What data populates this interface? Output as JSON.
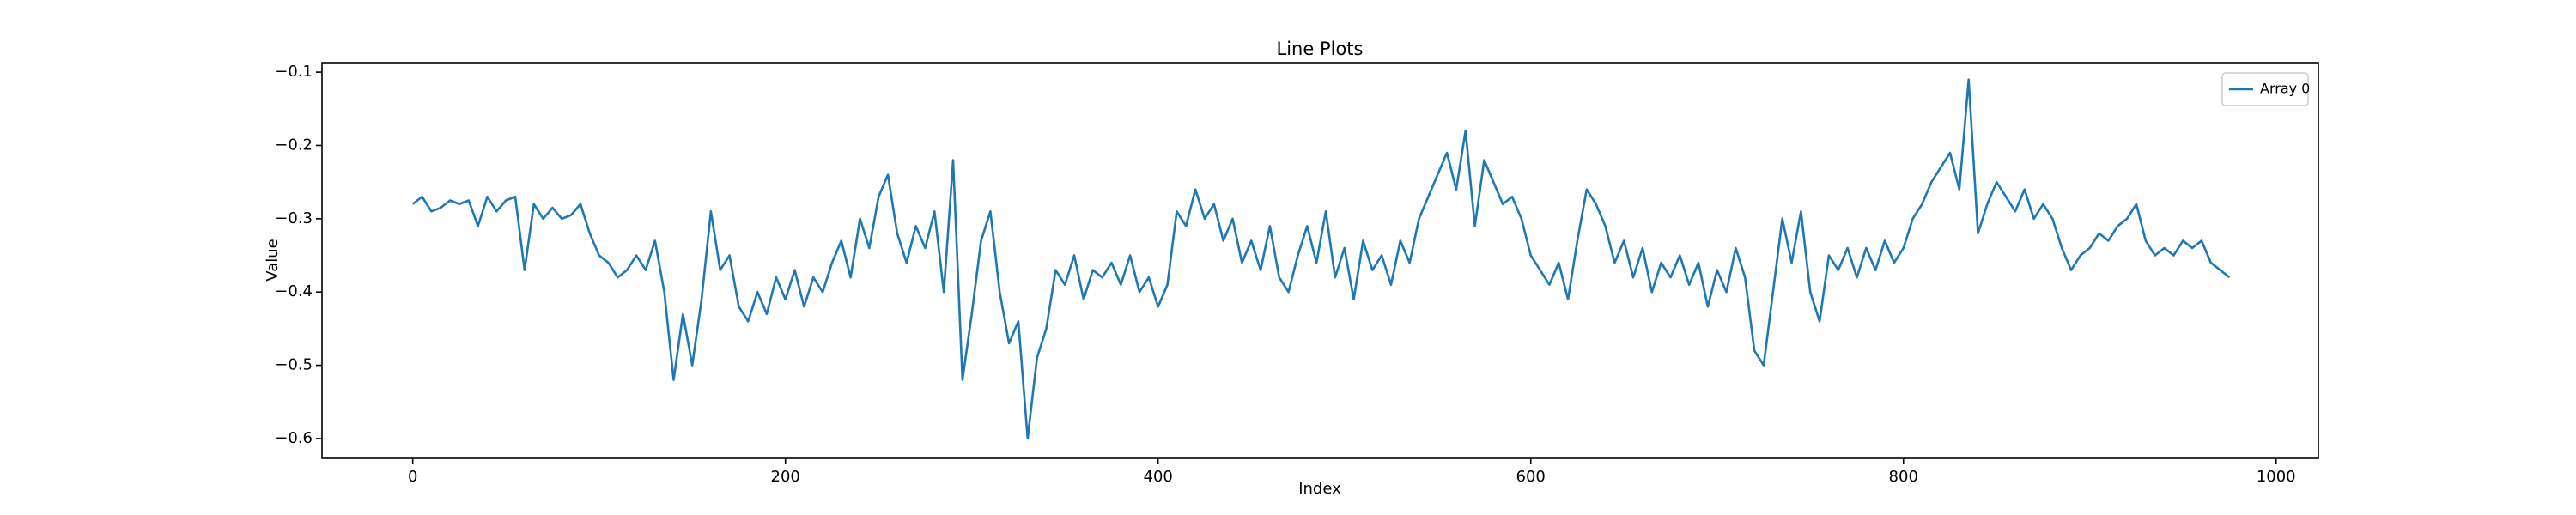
{
  "chart_data": {
    "type": "line",
    "title": "Line Plots",
    "xlabel": "Index",
    "ylabel": "Value",
    "x": [
      0,
      5,
      10,
      15,
      20,
      25,
      30,
      35,
      40,
      45,
      50,
      55,
      60,
      65,
      70,
      75,
      80,
      85,
      90,
      95,
      100,
      105,
      110,
      115,
      120,
      125,
      130,
      135,
      140,
      145,
      150,
      155,
      160,
      165,
      170,
      175,
      180,
      185,
      190,
      195,
      200,
      205,
      210,
      215,
      220,
      225,
      230,
      235,
      240,
      245,
      250,
      255,
      260,
      265,
      270,
      275,
      280,
      285,
      290,
      295,
      300,
      305,
      310,
      315,
      320,
      325,
      330,
      335,
      340,
      345,
      350,
      355,
      360,
      365,
      370,
      375,
      380,
      385,
      390,
      395,
      400,
      405,
      410,
      415,
      420,
      425,
      430,
      435,
      440,
      445,
      450,
      455,
      460,
      465,
      470,
      475,
      480,
      485,
      490,
      495,
      500,
      505,
      510,
      515,
      520,
      525,
      530,
      535,
      540,
      545,
      550,
      555,
      560,
      565,
      570,
      575,
      580,
      585,
      590,
      595,
      600,
      605,
      610,
      615,
      620,
      625,
      630,
      635,
      640,
      645,
      650,
      655,
      660,
      665,
      670,
      675,
      680,
      685,
      690,
      695,
      700,
      705,
      710,
      715,
      720,
      725,
      730,
      735,
      740,
      745,
      750,
      755,
      760,
      765,
      770,
      775,
      780,
      785,
      790,
      795,
      800,
      805,
      810,
      815,
      820,
      825,
      830,
      835,
      840,
      845,
      850,
      855,
      860,
      865,
      870,
      875,
      880,
      885,
      890,
      895,
      900,
      905,
      910,
      915,
      920,
      925,
      930,
      935,
      940,
      945,
      950,
      955,
      960,
      965,
      970,
      975
    ],
    "series": [
      {
        "name": "Array 0",
        "color": "#1f77b4",
        "values": [
          -0.28,
          -0.27,
          -0.29,
          -0.285,
          -0.275,
          -0.28,
          -0.275,
          -0.31,
          -0.27,
          -0.29,
          -0.275,
          -0.27,
          -0.37,
          -0.28,
          -0.3,
          -0.285,
          -0.3,
          -0.295,
          -0.28,
          -0.32,
          -0.35,
          -0.36,
          -0.38,
          -0.37,
          -0.35,
          -0.37,
          -0.33,
          -0.4,
          -0.52,
          -0.43,
          -0.5,
          -0.41,
          -0.29,
          -0.37,
          -0.35,
          -0.42,
          -0.44,
          -0.4,
          -0.43,
          -0.38,
          -0.41,
          -0.37,
          -0.42,
          -0.38,
          -0.4,
          -0.36,
          -0.33,
          -0.38,
          -0.3,
          -0.34,
          -0.27,
          -0.24,
          -0.32,
          -0.36,
          -0.31,
          -0.34,
          -0.29,
          -0.4,
          -0.22,
          -0.52,
          -0.43,
          -0.33,
          -0.29,
          -0.4,
          -0.47,
          -0.44,
          -0.6,
          -0.49,
          -0.45,
          -0.37,
          -0.39,
          -0.35,
          -0.41,
          -0.37,
          -0.38,
          -0.36,
          -0.39,
          -0.35,
          -0.4,
          -0.38,
          -0.42,
          -0.39,
          -0.29,
          -0.31,
          -0.26,
          -0.3,
          -0.28,
          -0.33,
          -0.3,
          -0.36,
          -0.33,
          -0.37,
          -0.31,
          -0.38,
          -0.4,
          -0.35,
          -0.31,
          -0.36,
          -0.29,
          -0.38,
          -0.34,
          -0.41,
          -0.33,
          -0.37,
          -0.35,
          -0.39,
          -0.33,
          -0.36,
          -0.3,
          -0.27,
          -0.24,
          -0.21,
          -0.26,
          -0.18,
          -0.31,
          -0.22,
          -0.25,
          -0.28,
          -0.27,
          -0.3,
          -0.35,
          -0.37,
          -0.39,
          -0.36,
          -0.41,
          -0.33,
          -0.26,
          -0.28,
          -0.31,
          -0.36,
          -0.33,
          -0.38,
          -0.34,
          -0.4,
          -0.36,
          -0.38,
          -0.35,
          -0.39,
          -0.36,
          -0.42,
          -0.37,
          -0.4,
          -0.34,
          -0.38,
          -0.48,
          -0.5,
          -0.4,
          -0.3,
          -0.36,
          -0.29,
          -0.4,
          -0.44,
          -0.35,
          -0.37,
          -0.34,
          -0.38,
          -0.34,
          -0.37,
          -0.33,
          -0.36,
          -0.34,
          -0.3,
          -0.28,
          -0.25,
          -0.23,
          -0.21,
          -0.26,
          -0.11,
          -0.32,
          -0.28,
          -0.25,
          -0.27,
          -0.29,
          -0.26,
          -0.3,
          -0.28,
          -0.3,
          -0.34,
          -0.37,
          -0.35,
          -0.34,
          -0.32,
          -0.33,
          -0.31,
          -0.3,
          -0.28,
          -0.33,
          -0.35,
          -0.34,
          -0.35,
          -0.33,
          -0.34,
          -0.33,
          -0.36,
          -0.37,
          -0.38
        ]
      }
    ],
    "xlim": [
      -48.7,
      1022.7
    ],
    "xticks": [
      0,
      200,
      400,
      600,
      800,
      1000
    ],
    "ylim": [
      -0.627,
      -0.087
    ],
    "yticks": [
      {
        "value": -0.6,
        "label": "−0.6"
      },
      {
        "value": -0.5,
        "label": "−0.5"
      },
      {
        "value": -0.4,
        "label": "−0.4"
      },
      {
        "value": -0.3,
        "label": "−0.3"
      },
      {
        "value": -0.2,
        "label": "−0.2"
      },
      {
        "value": -0.1,
        "label": "−0.1"
      }
    ],
    "legend": "upper right"
  }
}
